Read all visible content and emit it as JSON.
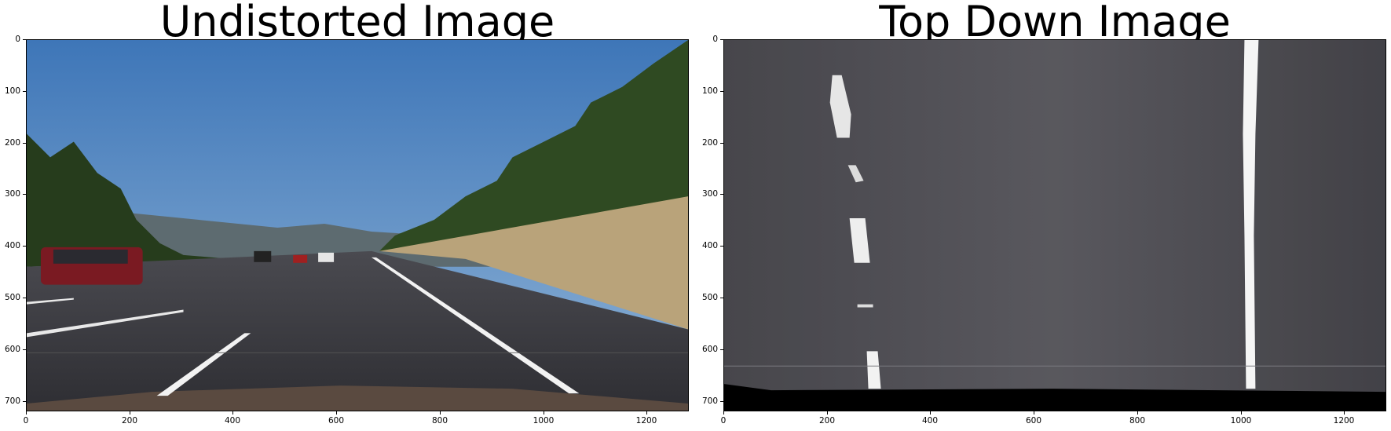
{
  "panels": [
    {
      "title": "Undistorted Image",
      "image": "photo of a highway road scene with lane markings, trees, hills and cars under blue sky",
      "x_ticks": [
        "0",
        "200",
        "400",
        "600",
        "800",
        "1000",
        "1200"
      ],
      "y_ticks": [
        "0",
        "100",
        "200",
        "300",
        "400",
        "500",
        "600",
        "700"
      ]
    },
    {
      "title": "Top Down Image",
      "image": "bird's-eye warped view of the road with two lane lines on grey asphalt",
      "x_ticks": [
        "0",
        "200",
        "400",
        "600",
        "800",
        "1000",
        "1200"
      ],
      "y_ticks": [
        "0",
        "100",
        "200",
        "300",
        "400",
        "500",
        "600",
        "700"
      ]
    }
  ],
  "colors": {
    "sky": "#5b8fc6",
    "asphalt": "#3a3a3f",
    "grass": "#b9a37a",
    "trees": "#2f4a22",
    "lane_white": "#f2f2f2",
    "warped_road": "#55555c"
  }
}
